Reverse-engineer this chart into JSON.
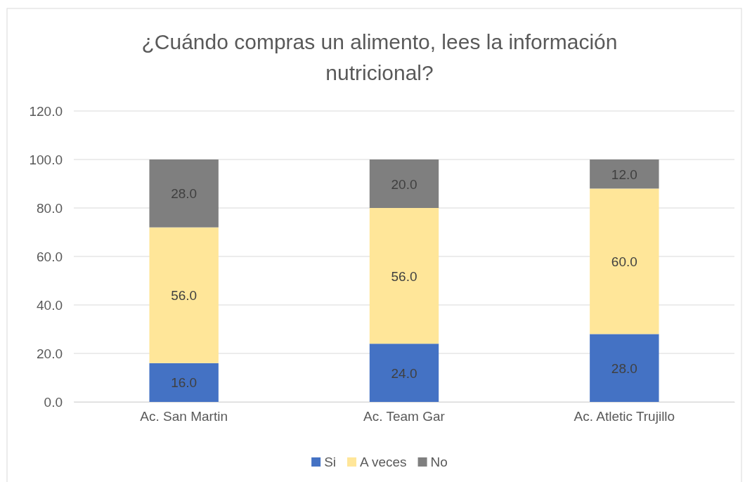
{
  "chart_data": {
    "type": "bar",
    "title": "¿Cuándo compras un alimento, lees la información nutricional?",
    "categories": [
      "Ac. San Martin",
      "Ac. Team Gar",
      "Ac. Atletic Trujillo"
    ],
    "stacked": true,
    "series": [
      {
        "name": "Si",
        "color": "#4472c4",
        "values": [
          16.0,
          24.0,
          28.0
        ],
        "value_labels": [
          "16.0",
          "24.0",
          "28.0"
        ]
      },
      {
        "name": "A veces",
        "color": "#ffe699",
        "values": [
          56.0,
          56.0,
          60.0
        ],
        "value_labels": [
          "56.0",
          "56.0",
          "60.0"
        ]
      },
      {
        "name": "No",
        "color": "#7f7f7f",
        "values": [
          28.0,
          20.0,
          12.0
        ],
        "value_labels": [
          "28.0",
          "20.0",
          "12.0"
        ]
      }
    ],
    "ylim": [
      0,
      120
    ],
    "yticks": [
      {
        "value": 0,
        "label": "0.0"
      },
      {
        "value": 20,
        "label": "20.0"
      },
      {
        "value": 40,
        "label": "40.0"
      },
      {
        "value": 60,
        "label": "60.0"
      },
      {
        "value": 80,
        "label": "80.0"
      },
      {
        "value": 100,
        "label": "100.0"
      },
      {
        "value": 120,
        "label": "120.0"
      }
    ],
    "grid": "y",
    "legend": "bottom"
  }
}
